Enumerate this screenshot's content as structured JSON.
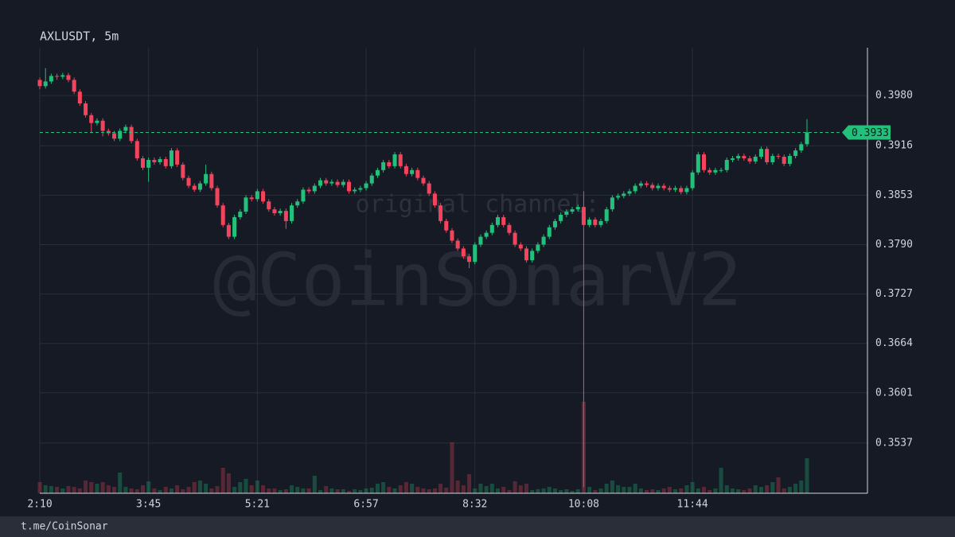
{
  "chart_data": {
    "type": "candlestick",
    "title": "AXLUSDT, 5m",
    "categories": [
      "2:10",
      null,
      null,
      null,
      null,
      null,
      null,
      null,
      null,
      null,
      null,
      null,
      null,
      null,
      null,
      null,
      null,
      null,
      null,
      "3:45",
      null,
      null,
      null,
      null,
      null,
      null,
      null,
      null,
      null,
      null,
      null,
      null,
      null,
      null,
      null,
      null,
      null,
      null,
      "5:21",
      null,
      null,
      null,
      null,
      null,
      null,
      null,
      null,
      null,
      null,
      null,
      null,
      null,
      null,
      null,
      null,
      null,
      null,
      "6:57",
      null,
      null,
      null,
      null,
      null,
      null,
      null,
      null,
      null,
      null,
      null,
      null,
      null,
      null,
      null,
      null,
      null,
      null,
      "8:32",
      null,
      null,
      null,
      null,
      null,
      null,
      null,
      null,
      null,
      null,
      null,
      null,
      null,
      null,
      null,
      null,
      null,
      null,
      "10:08",
      null,
      null,
      null,
      null,
      null,
      null,
      null,
      null,
      null,
      null,
      null,
      null,
      null,
      null,
      null,
      null,
      null,
      null,
      "11:44",
      null,
      null,
      null,
      null,
      null,
      null,
      null,
      null,
      null,
      null,
      null,
      null,
      null,
      null,
      null,
      null,
      null,
      null,
      null,
      null
    ],
    "open": [
      0.4,
      0.3992,
      0.3998,
      0.4005,
      0.4004,
      0.4006,
      0.4,
      0.3985,
      0.397,
      0.3955,
      0.3945,
      0.3948,
      0.3935,
      0.3932,
      0.3925,
      0.3935,
      0.394,
      0.3922,
      0.39,
      0.3888,
      0.3898,
      0.3895,
      0.3899,
      0.389,
      0.391,
      0.3892,
      0.3875,
      0.3865,
      0.386,
      0.3868,
      0.388,
      0.3862,
      0.384,
      0.3815,
      0.38,
      0.3825,
      0.3832,
      0.385,
      0.3848,
      0.3858,
      0.3845,
      0.3835,
      0.383,
      0.3833,
      0.382,
      0.384,
      0.3845,
      0.386,
      0.3858,
      0.3865,
      0.3872,
      0.3868,
      0.387,
      0.3866,
      0.387,
      0.3858,
      0.386,
      0.3862,
      0.3868,
      0.3878,
      0.3885,
      0.3895,
      0.389,
      0.3905,
      0.389,
      0.388,
      0.3885,
      0.3875,
      0.3868,
      0.3855,
      0.384,
      0.382,
      0.3808,
      0.3795,
      0.3785,
      0.3775,
      0.3768,
      0.379,
      0.38,
      0.3805,
      0.3815,
      0.3825,
      0.3815,
      0.3805,
      0.379,
      0.3785,
      0.377,
      0.3782,
      0.379,
      0.38,
      0.3812,
      0.382,
      0.3828,
      0.3832,
      0.3835,
      0.3838,
      0.3815,
      0.3822,
      0.3815,
      0.382,
      0.3835,
      0.385,
      0.3852,
      0.3855,
      0.3858,
      0.3865,
      0.3868,
      0.3866,
      0.3862,
      0.3865,
      0.3862,
      0.386,
      0.3862,
      0.3857,
      0.3862,
      0.3882,
      0.3905,
      0.3885,
      0.3882,
      0.3885,
      0.3885,
      0.3898,
      0.39,
      0.3903,
      0.39,
      0.3896,
      0.3902,
      0.3912,
      0.3895,
      0.3903,
      0.3902,
      0.3893,
      0.3903,
      0.391,
      0.3918
    ],
    "high": [
      0.4003,
      0.4015,
      0.4008,
      0.4008,
      0.4009,
      0.4009,
      0.4003,
      0.3988,
      0.3973,
      0.3958,
      0.3951,
      0.3951,
      0.3938,
      0.3935,
      0.3938,
      0.3943,
      0.3943,
      0.3925,
      0.3903,
      0.3901,
      0.3901,
      0.3902,
      0.3902,
      0.3913,
      0.3913,
      0.3895,
      0.3878,
      0.3868,
      0.3871,
      0.3892,
      0.3883,
      0.3865,
      0.3843,
      0.3818,
      0.3828,
      0.3835,
      0.3853,
      0.3853,
      0.3861,
      0.3861,
      0.3848,
      0.3838,
      0.3836,
      0.3836,
      0.3843,
      0.3848,
      0.3863,
      0.3863,
      0.3868,
      0.3875,
      0.3875,
      0.3873,
      0.3873,
      0.3873,
      0.3873,
      0.3863,
      0.3865,
      0.3871,
      0.3881,
      0.3888,
      0.3898,
      0.3898,
      0.3908,
      0.3908,
      0.3893,
      0.3888,
      0.3888,
      0.3878,
      0.3871,
      0.3858,
      0.3843,
      0.3823,
      0.3811,
      0.3798,
      0.3788,
      0.3778,
      0.3793,
      0.3803,
      0.3808,
      0.3818,
      0.3828,
      0.3828,
      0.3818,
      0.3808,
      0.3793,
      0.3788,
      0.3785,
      0.3793,
      0.3803,
      0.3815,
      0.3823,
      0.3831,
      0.3835,
      0.3838,
      0.3841,
      0.3858,
      0.3825,
      0.3825,
      0.3823,
      0.3838,
      0.3853,
      0.3855,
      0.3858,
      0.3861,
      0.3868,
      0.3871,
      0.3871,
      0.3869,
      0.3868,
      0.3868,
      0.3865,
      0.3865,
      0.3865,
      0.3865,
      0.3885,
      0.3908,
      0.3908,
      0.3888,
      0.3888,
      0.3888,
      0.3901,
      0.3903,
      0.3906,
      0.3906,
      0.3903,
      0.3905,
      0.3915,
      0.3915,
      0.3906,
      0.3906,
      0.3905,
      0.3906,
      0.3913,
      0.3921,
      0.395
    ],
    "low": [
      0.3988,
      0.3989,
      0.3995,
      0.4,
      0.4001,
      0.3997,
      0.3982,
      0.3967,
      0.3952,
      0.3932,
      0.3942,
      0.3928,
      0.3929,
      0.3922,
      0.3922,
      0.3932,
      0.3919,
      0.3897,
      0.3885,
      0.387,
      0.3892,
      0.3892,
      0.3887,
      0.3887,
      0.3889,
      0.3872,
      0.3862,
      0.3857,
      0.3857,
      0.3865,
      0.3859,
      0.3837,
      0.3812,
      0.3797,
      0.3797,
      0.3822,
      0.3829,
      0.3845,
      0.3845,
      0.3842,
      0.3832,
      0.3827,
      0.3827,
      0.381,
      0.3817,
      0.3837,
      0.3842,
      0.3855,
      0.3855,
      0.3862,
      0.3865,
      0.3865,
      0.3863,
      0.3863,
      0.3855,
      0.3855,
      0.3857,
      0.3859,
      0.3865,
      0.3875,
      0.3882,
      0.3887,
      0.3887,
      0.3887,
      0.3877,
      0.3877,
      0.3872,
      0.3865,
      0.3852,
      0.3837,
      0.3817,
      0.3805,
      0.3792,
      0.3782,
      0.3772,
      0.376,
      0.3765,
      0.3787,
      0.3797,
      0.3802,
      0.3812,
      0.3812,
      0.3802,
      0.3787,
      0.3782,
      0.3767,
      0.3767,
      0.3779,
      0.3787,
      0.3797,
      0.3809,
      0.3817,
      0.3825,
      0.3829,
      0.3832,
      0.3481,
      0.3812,
      0.3812,
      0.3812,
      0.3817,
      0.3832,
      0.3847,
      0.3849,
      0.3852,
      0.3855,
      0.3862,
      0.3863,
      0.3859,
      0.3859,
      0.3859,
      0.3857,
      0.3857,
      0.3854,
      0.3854,
      0.3859,
      0.3879,
      0.3882,
      0.3879,
      0.3879,
      0.3882,
      0.3882,
      0.3895,
      0.3897,
      0.3897,
      0.3893,
      0.3893,
      0.3899,
      0.3892,
      0.3892,
      0.3899,
      0.389,
      0.389,
      0.39,
      0.3907,
      0.3915
    ],
    "close": [
      0.3992,
      0.3998,
      0.4005,
      0.4004,
      0.4006,
      0.4,
      0.3985,
      0.397,
      0.3955,
      0.3945,
      0.3948,
      0.3935,
      0.3932,
      0.3925,
      0.3935,
      0.394,
      0.3922,
      0.39,
      0.3888,
      0.3898,
      0.3895,
      0.3899,
      0.389,
      0.391,
      0.3892,
      0.3875,
      0.3865,
      0.386,
      0.3868,
      0.388,
      0.3862,
      0.384,
      0.3815,
      0.38,
      0.3825,
      0.3832,
      0.385,
      0.3848,
      0.3858,
      0.3845,
      0.3835,
      0.383,
      0.3833,
      0.382,
      0.384,
      0.3845,
      0.386,
      0.3858,
      0.3865,
      0.3872,
      0.3868,
      0.387,
      0.3866,
      0.387,
      0.3858,
      0.386,
      0.3862,
      0.3868,
      0.3878,
      0.3885,
      0.3895,
      0.389,
      0.3905,
      0.389,
      0.388,
      0.3885,
      0.3875,
      0.3868,
      0.3855,
      0.384,
      0.382,
      0.3808,
      0.3795,
      0.3785,
      0.3775,
      0.3768,
      0.379,
      0.38,
      0.3805,
      0.3815,
      0.3825,
      0.3815,
      0.3805,
      0.379,
      0.3785,
      0.377,
      0.3782,
      0.379,
      0.38,
      0.3812,
      0.382,
      0.3828,
      0.3832,
      0.3835,
      0.3838,
      0.3815,
      0.3822,
      0.3815,
      0.382,
      0.3835,
      0.385,
      0.3852,
      0.3855,
      0.3858,
      0.3865,
      0.3868,
      0.3866,
      0.3862,
      0.3865,
      0.3862,
      0.386,
      0.3862,
      0.3857,
      0.3862,
      0.3882,
      0.3905,
      0.3885,
      0.3882,
      0.3885,
      0.3885,
      0.3898,
      0.39,
      0.3903,
      0.39,
      0.3896,
      0.3902,
      0.3912,
      0.3895,
      0.3903,
      0.3902,
      0.3893,
      0.3903,
      0.391,
      0.3918,
      0.3933
    ],
    "volume": [
      14,
      10,
      9,
      8,
      6,
      9,
      8,
      6,
      16,
      14,
      12,
      14,
      10,
      8,
      26,
      8,
      6,
      5,
      10,
      15,
      6,
      4,
      8,
      6,
      10,
      5,
      8,
      14,
      16,
      12,
      6,
      9,
      32,
      25,
      8,
      14,
      18,
      10,
      16,
      10,
      6,
      6,
      4,
      5,
      10,
      8,
      6,
      6,
      22,
      4,
      9,
      6,
      5,
      5,
      3,
      5,
      4,
      6,
      7,
      12,
      14,
      8,
      6,
      10,
      14,
      12,
      8,
      6,
      5,
      6,
      12,
      7,
      64,
      16,
      10,
      24,
      6,
      12,
      9,
      12,
      6,
      8,
      4,
      15,
      10,
      12,
      4,
      5,
      6,
      8,
      6,
      4,
      5,
      3,
      5,
      115,
      8,
      4,
      6,
      12,
      16,
      10,
      8,
      8,
      12,
      6,
      4,
      5,
      4,
      6,
      8,
      5,
      6,
      10,
      14,
      6,
      8,
      4,
      6,
      32,
      10,
      6,
      5,
      4,
      6,
      10,
      8,
      10,
      14,
      20,
      6,
      8,
      12,
      16,
      44
    ],
    "up_color": "#22c07a",
    "down_color": "#f2445c",
    "ylim": [
      0.3473,
      0.4041
    ],
    "yticks": [
      {
        "value": 0.398,
        "label": "0.3980"
      },
      0.3916,
      0.3853,
      {
        "value": 0.379,
        "label": "0.3790"
      },
      0.3727,
      0.3664,
      0.3601,
      0.3537
    ],
    "grid": true,
    "last_price": 0.3933,
    "annotations": [
      "original channel:",
      "@CoinSonarV2"
    ]
  },
  "footer": "t.me/CoinSonar"
}
